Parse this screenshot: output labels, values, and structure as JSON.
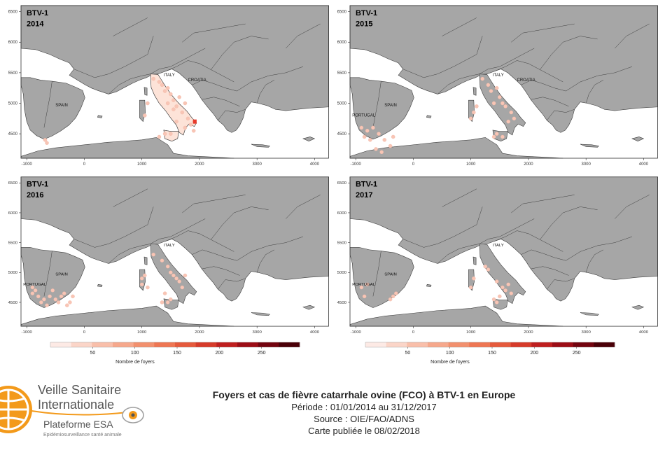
{
  "maps": [
    {
      "label": "BTV-1",
      "year": "2014",
      "countries": [
        "ITALY",
        "CROATIA",
        "SPAIN"
      ],
      "foci": [
        [
          1350,
          5300
        ],
        [
          1450,
          5250
        ],
        [
          1500,
          5150
        ],
        [
          1550,
          5050
        ],
        [
          1600,
          4950
        ],
        [
          1700,
          4850
        ],
        [
          1800,
          4750
        ],
        [
          1850,
          4650
        ],
        [
          1750,
          5000
        ],
        [
          1400,
          5200
        ],
        [
          1300,
          5350
        ],
        [
          1650,
          5100
        ],
        [
          1550,
          4900
        ],
        [
          1450,
          5000
        ],
        [
          1200,
          5400
        ],
        [
          1900,
          4550
        ],
        [
          1750,
          4600
        ],
        [
          1600,
          4700
        ],
        [
          1300,
          4450
        ],
        [
          1400,
          4500
        ],
        [
          1500,
          4500
        ],
        [
          1100,
          5000
        ],
        [
          1050,
          4800
        ],
        [
          -650,
          4350
        ],
        [
          -680,
          4400
        ],
        [
          1900,
          4700
        ]
      ],
      "max_focus": [
        1920,
        4700
      ]
    },
    {
      "label": "BTV-1",
      "year": "2015",
      "countries": [
        "ITALY",
        "CROATIA",
        "SPAIN",
        "PORTUGAL"
      ],
      "foci": [
        [
          1300,
          5300
        ],
        [
          1350,
          5200
        ],
        [
          1450,
          5250
        ],
        [
          1500,
          5100
        ],
        [
          1550,
          5000
        ],
        [
          1600,
          4950
        ],
        [
          1700,
          4850
        ],
        [
          1750,
          4750
        ],
        [
          1650,
          4700
        ],
        [
          1400,
          5000
        ],
        [
          1100,
          4950
        ],
        [
          1050,
          4850
        ],
        [
          1000,
          4750
        ],
        [
          1450,
          4500
        ],
        [
          1550,
          4450
        ],
        [
          1400,
          4450
        ],
        [
          -850,
          4450
        ],
        [
          -800,
          4550
        ],
        [
          -700,
          4600
        ],
        [
          -600,
          4500
        ],
        [
          -500,
          4400
        ],
        [
          -750,
          4400
        ],
        [
          -400,
          4300
        ],
        [
          -650,
          4250
        ],
        [
          -550,
          4200
        ],
        [
          -350,
          4450
        ],
        [
          -900,
          4600
        ],
        [
          1200,
          5400
        ]
      ],
      "max_focus": null
    },
    {
      "label": "BTV-1",
      "year": "2016",
      "countries": [
        "ITALY",
        "SPAIN",
        "PORTUGAL"
      ],
      "foci": [
        [
          1350,
          5200
        ],
        [
          1450,
          5100
        ],
        [
          1500,
          5000
        ],
        [
          1550,
          4950
        ],
        [
          1600,
          4900
        ],
        [
          1650,
          4850
        ],
        [
          1700,
          4750
        ],
        [
          1400,
          4650
        ],
        [
          1500,
          4550
        ],
        [
          1450,
          4500
        ],
        [
          1350,
          4500
        ],
        [
          1050,
          4950
        ],
        [
          1000,
          4800
        ],
        [
          1100,
          4750
        ],
        [
          1000,
          4900
        ],
        [
          -900,
          4650
        ],
        [
          -850,
          4700
        ],
        [
          -800,
          4600
        ],
        [
          -750,
          4500
        ],
        [
          -700,
          4550
        ],
        [
          -650,
          4450
        ],
        [
          -600,
          4600
        ],
        [
          -500,
          4550
        ],
        [
          -450,
          4500
        ],
        [
          -400,
          4600
        ],
        [
          -550,
          4700
        ],
        [
          -350,
          4650
        ],
        [
          -300,
          4450
        ],
        [
          -200,
          4600
        ],
        [
          -250,
          4500
        ],
        [
          -900,
          4750
        ],
        [
          1200,
          5300
        ],
        [
          1750,
          4950
        ]
      ],
      "max_focus": null
    },
    {
      "label": "BTV-1",
      "year": "2017",
      "countries": [
        "ITALY",
        "SPAIN",
        "PORTUGAL"
      ],
      "foci": [
        [
          1250,
          5100
        ],
        [
          1300,
          5050
        ],
        [
          1450,
          4850
        ],
        [
          1550,
          4750
        ],
        [
          1600,
          4700
        ],
        [
          1650,
          4800
        ],
        [
          1700,
          4650
        ],
        [
          1500,
          4600
        ],
        [
          1400,
          4550
        ],
        [
          1450,
          4500
        ],
        [
          1050,
          4900
        ],
        [
          1000,
          4750
        ],
        [
          -900,
          4750
        ],
        [
          -850,
          4600
        ],
        [
          -800,
          4800
        ],
        [
          -350,
          4600
        ],
        [
          -400,
          4550
        ],
        [
          -300,
          4650
        ]
      ],
      "max_focus": null
    }
  ],
  "axis": {
    "x_ticks": [
      "-1000",
      "0",
      "1000",
      "2000",
      "3000",
      "4000"
    ],
    "y_ticks": [
      "6500",
      "6000",
      "5500",
      "5000",
      "4500"
    ]
  },
  "legend": {
    "ticks": [
      "50",
      "100",
      "150",
      "200",
      "250"
    ],
    "title": "Nombre de foyers",
    "colors": [
      "#fdeae5",
      "#fbd5c8",
      "#f9bfaa",
      "#f6a88c",
      "#f2906e",
      "#ee7653",
      "#e55a3c",
      "#d63b2a",
      "#bf1f1f",
      "#9c0d16",
      "#73040f",
      "#4a0008"
    ]
  },
  "colors": {
    "land": "#a6a6a6",
    "border": "#3c3c3c",
    "sea": "#ffffff",
    "focus": "#f8c5b5",
    "focus_max": "#e83a2a",
    "logo_orange": "#f39a1b"
  },
  "footer": {
    "logo": {
      "line1": "Veille Sanitaire",
      "line2": "Internationale",
      "line3": "Plateforme ESA",
      "line4": "Epidémiosurveillance santé animale"
    },
    "title": "Foyers et cas de fièvre catarrhale ovine (FCO) à BTV-1 en Europe",
    "period": "Période : 01/01/2014 au 31/12/2017",
    "source": "Source : OIE/FAO/ADNS",
    "published": "Carte publiée le 08/02/2018"
  }
}
